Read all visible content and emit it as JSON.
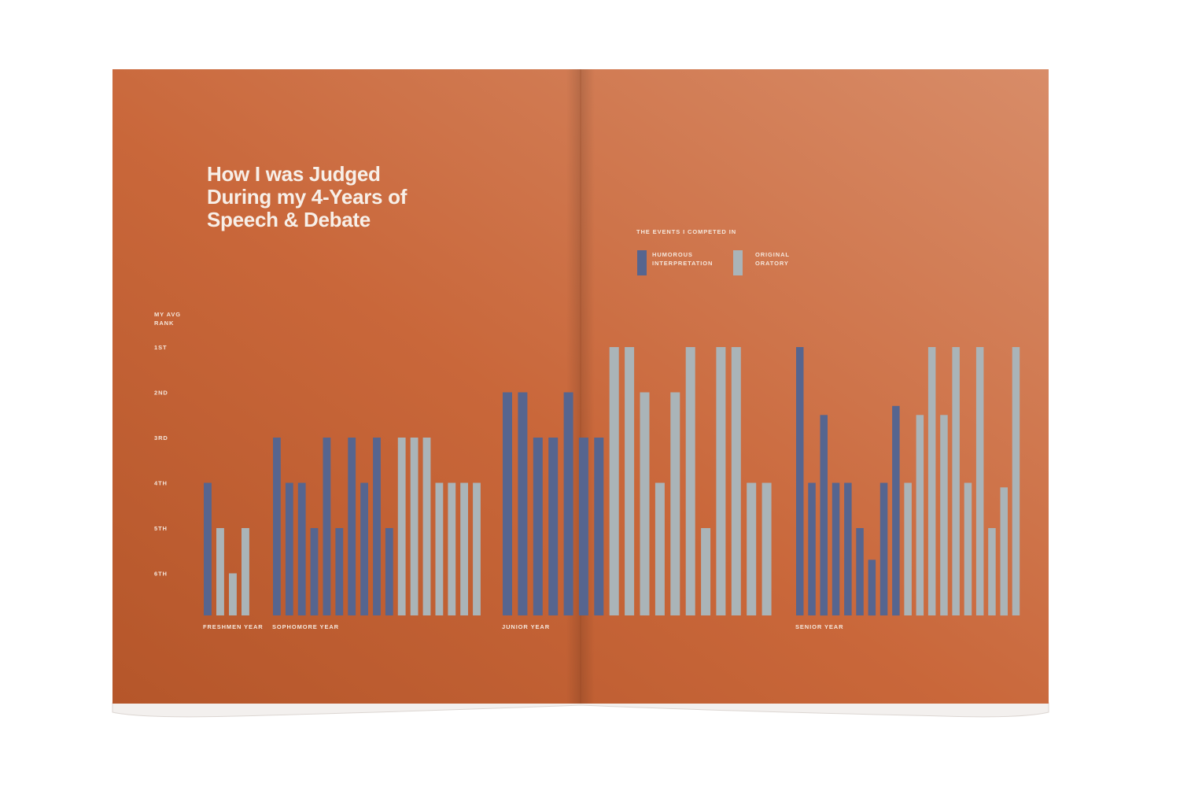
{
  "colors": {
    "page": "#c9673a",
    "page_light": "#d4875f",
    "humorous": "#56658f",
    "oratory": "#aab4b8",
    "text": "#f5e7dc"
  },
  "title_lines": [
    "How I was Judged",
    "During my 4-Years of",
    "Speech & Debate"
  ],
  "legend": {
    "heading": "THE EVENTS I COMPETED IN",
    "humorous": [
      "HUMOROUS",
      "INTERPRETATION"
    ],
    "oratory": [
      "ORIGINAL",
      "ORATORY"
    ]
  },
  "chart_data": {
    "type": "bar",
    "ylabel": [
      "MY AVG",
      "RANK"
    ],
    "y_ticks": [
      "1ST",
      "2ND",
      "3RD",
      "4TH",
      "5TH",
      "6TH"
    ],
    "y_direction": "rank 1 at top; higher bar = better rank",
    "legend_placement": "top-right",
    "grid": false,
    "groups": [
      {
        "label": "FRESHMEN YEAR",
        "bars": [
          {
            "event": "Humorous Interpretation",
            "rank": 4.0
          },
          {
            "event": "Original Oratory",
            "rank": 5.0
          },
          {
            "event": "Original Oratory",
            "rank": 6.0
          },
          {
            "event": "Original Oratory",
            "rank": 5.0
          }
        ]
      },
      {
        "label": "SOPHOMORE YEAR",
        "bars": [
          {
            "event": "Humorous Interpretation",
            "rank": 3.0
          },
          {
            "event": "Humorous Interpretation",
            "rank": 4.0
          },
          {
            "event": "Humorous Interpretation",
            "rank": 4.0
          },
          {
            "event": "Humorous Interpretation",
            "rank": 5.0
          },
          {
            "event": "Humorous Interpretation",
            "rank": 3.0
          },
          {
            "event": "Humorous Interpretation",
            "rank": 5.0
          },
          {
            "event": "Humorous Interpretation",
            "rank": 3.0
          },
          {
            "event": "Humorous Interpretation",
            "rank": 4.0
          },
          {
            "event": "Humorous Interpretation",
            "rank": 3.0
          },
          {
            "event": "Humorous Interpretation",
            "rank": 5.0
          },
          {
            "event": "Original Oratory",
            "rank": 3.0
          },
          {
            "event": "Original Oratory",
            "rank": 3.0
          },
          {
            "event": "Original Oratory",
            "rank": 3.0
          },
          {
            "event": "Original Oratory",
            "rank": 4.0
          },
          {
            "event": "Original Oratory",
            "rank": 4.0
          },
          {
            "event": "Original Oratory",
            "rank": 4.0
          },
          {
            "event": "Original Oratory",
            "rank": 4.0
          }
        ]
      },
      {
        "label": "JUNIOR YEAR",
        "bars": [
          {
            "event": "Humorous Interpretation",
            "rank": 2.0
          },
          {
            "event": "Humorous Interpretation",
            "rank": 2.0
          },
          {
            "event": "Humorous Interpretation",
            "rank": 3.0
          },
          {
            "event": "Humorous Interpretation",
            "rank": 3.0
          },
          {
            "event": "Humorous Interpretation",
            "rank": 2.0
          },
          {
            "event": "Humorous Interpretation",
            "rank": 3.0
          },
          {
            "event": "Humorous Interpretation",
            "rank": 3.0
          },
          {
            "event": "Original Oratory",
            "rank": 1.0
          },
          {
            "event": "Original Oratory",
            "rank": 1.0
          },
          {
            "event": "Original Oratory",
            "rank": 2.0
          },
          {
            "event": "Original Oratory",
            "rank": 4.0
          },
          {
            "event": "Original Oratory",
            "rank": 2.0
          },
          {
            "event": "Original Oratory",
            "rank": 1.0
          },
          {
            "event": "Original Oratory",
            "rank": 5.0
          },
          {
            "event": "Original Oratory",
            "rank": 1.0
          },
          {
            "event": "Original Oratory",
            "rank": 1.0
          },
          {
            "event": "Original Oratory",
            "rank": 4.0
          },
          {
            "event": "Original Oratory",
            "rank": 4.0
          }
        ]
      },
      {
        "label": "SENIOR YEAR",
        "bars": [
          {
            "event": "Humorous Interpretation",
            "rank": 1.0
          },
          {
            "event": "Humorous Interpretation",
            "rank": 4.0
          },
          {
            "event": "Humorous Interpretation",
            "rank": 2.5
          },
          {
            "event": "Humorous Interpretation",
            "rank": 4.0
          },
          {
            "event": "Humorous Interpretation",
            "rank": 4.0
          },
          {
            "event": "Humorous Interpretation",
            "rank": 5.0
          },
          {
            "event": "Humorous Interpretation",
            "rank": 5.7
          },
          {
            "event": "Humorous Interpretation",
            "rank": 4.0
          },
          {
            "event": "Humorous Interpretation",
            "rank": 2.3
          },
          {
            "event": "Original Oratory",
            "rank": 4.0
          },
          {
            "event": "Original Oratory",
            "rank": 2.5
          },
          {
            "event": "Original Oratory",
            "rank": 1.0
          },
          {
            "event": "Original Oratory",
            "rank": 2.5
          },
          {
            "event": "Original Oratory",
            "rank": 1.0
          },
          {
            "event": "Original Oratory",
            "rank": 4.0
          },
          {
            "event": "Original Oratory",
            "rank": 1.0
          },
          {
            "event": "Original Oratory",
            "rank": 5.0
          },
          {
            "event": "Original Oratory",
            "rank": 4.1
          },
          {
            "event": "Original Oratory",
            "rank": 1.0
          }
        ]
      }
    ]
  }
}
